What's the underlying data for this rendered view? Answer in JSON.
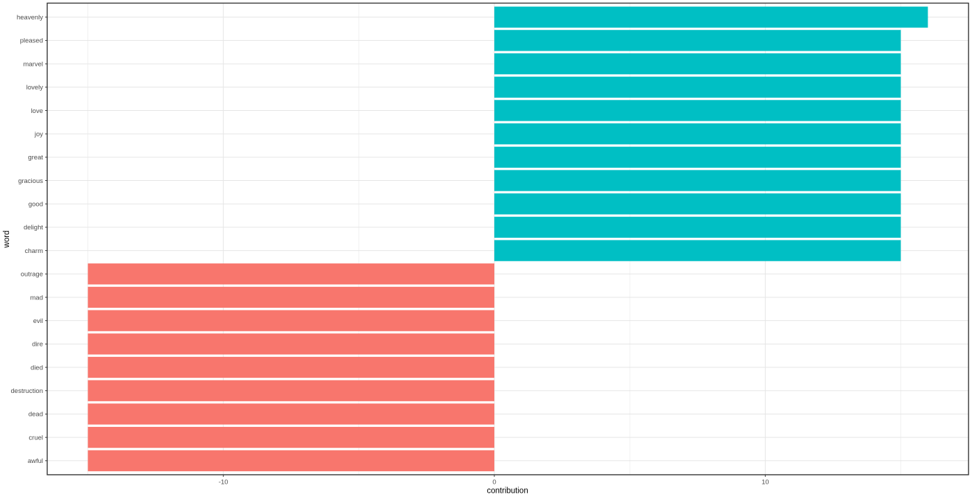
{
  "chart_data": {
    "type": "bar",
    "orientation": "horizontal",
    "title": "",
    "xlabel": "contribution",
    "ylabel": "word",
    "xlim": [
      -16.5,
      17.5
    ],
    "x_major_ticks": [
      -10,
      0,
      10
    ],
    "x_minor_ticks": [
      -15,
      -5,
      5,
      15
    ],
    "grid": "major-and-minor",
    "legend": "none",
    "bar_height_fraction": 0.9,
    "colors": {
      "positive": "#00BFC4",
      "negative": "#F8766D",
      "grid_major": "#E5E5E5",
      "grid_minor": "#F0F0F0",
      "panel_border": "#333333",
      "tick_mark": "#333333",
      "tick_label": "#4D4D4D",
      "axis_title": "#000000",
      "background": "#FFFFFF"
    },
    "bars": [
      {
        "word": "heavenly",
        "contribution": 16,
        "sentiment": "positive"
      },
      {
        "word": "pleased",
        "contribution": 15,
        "sentiment": "positive"
      },
      {
        "word": "marvel",
        "contribution": 15,
        "sentiment": "positive"
      },
      {
        "word": "lovely",
        "contribution": 15,
        "sentiment": "positive"
      },
      {
        "word": "love",
        "contribution": 15,
        "sentiment": "positive"
      },
      {
        "word": "joy",
        "contribution": 15,
        "sentiment": "positive"
      },
      {
        "word": "great",
        "contribution": 15,
        "sentiment": "positive"
      },
      {
        "word": "gracious",
        "contribution": 15,
        "sentiment": "positive"
      },
      {
        "word": "good",
        "contribution": 15,
        "sentiment": "positive"
      },
      {
        "word": "delight",
        "contribution": 15,
        "sentiment": "positive"
      },
      {
        "word": "charm",
        "contribution": 15,
        "sentiment": "positive"
      },
      {
        "word": "outrage",
        "contribution": -15,
        "sentiment": "negative"
      },
      {
        "word": "mad",
        "contribution": -15,
        "sentiment": "negative"
      },
      {
        "word": "evil",
        "contribution": -15,
        "sentiment": "negative"
      },
      {
        "word": "dire",
        "contribution": -15,
        "sentiment": "negative"
      },
      {
        "word": "died",
        "contribution": -15,
        "sentiment": "negative"
      },
      {
        "word": "destruction",
        "contribution": -15,
        "sentiment": "negative"
      },
      {
        "word": "dead",
        "contribution": -15,
        "sentiment": "negative"
      },
      {
        "word": "cruel",
        "contribution": -15,
        "sentiment": "negative"
      },
      {
        "word": "awful",
        "contribution": -15,
        "sentiment": "negative"
      }
    ]
  }
}
